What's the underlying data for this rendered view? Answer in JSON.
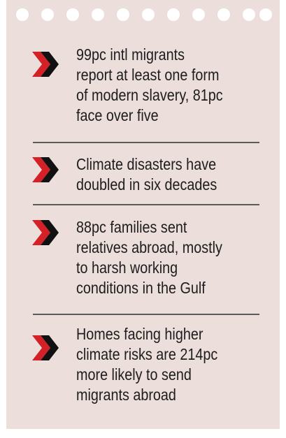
{
  "colors": {
    "card_background": "#ecdedb",
    "chevron_red": "#d42027",
    "chevron_black": "#111111",
    "text": "#1d1d1d",
    "divider": "#5b5b5b"
  },
  "icon": "double-chevron-right-icon",
  "items": [
    {
      "lines": [
        "99pc intl migrants",
        "report at least one form",
        "of modern slavery, 81pc",
        "face over five"
      ]
    },
    {
      "lines": [
        "Climate disasters have",
        "doubled in six decades"
      ]
    },
    {
      "lines": [
        "88pc families sent",
        "relatives abroad, mostly",
        "to harsh working",
        "conditions in the Gulf"
      ]
    },
    {
      "lines": [
        "Homes facing higher",
        "climate risks are 214pc",
        "more likely to send",
        "migrants abroad"
      ]
    }
  ]
}
